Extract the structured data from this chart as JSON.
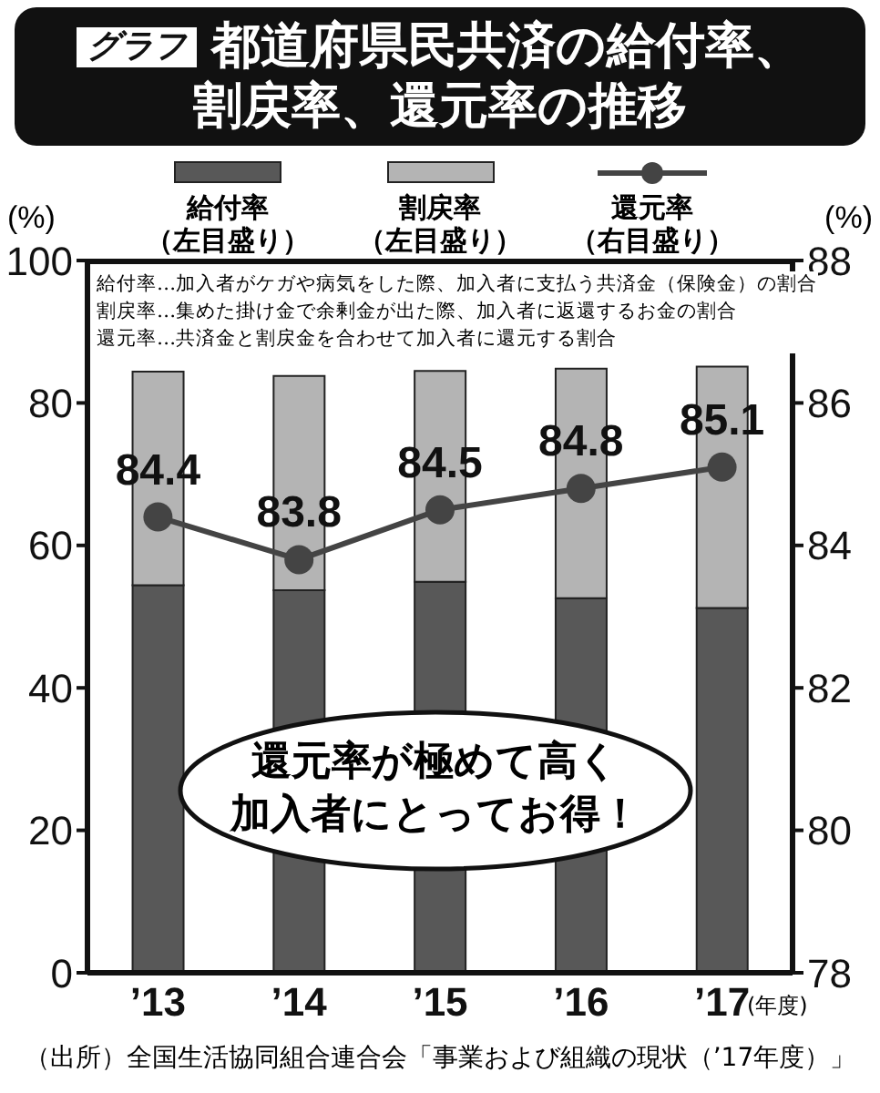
{
  "chart_data": {
    "type": "bar",
    "subtitle": "グラフ",
    "title": "都道府県民共済の給付率、割戻率、還元率の推移",
    "ylabel": "(%)",
    "y2label": "(%)",
    "xlabel": "(年度)",
    "categories": [
      "’13",
      "’14",
      "’15",
      "’16",
      "’17"
    ],
    "stacked": true,
    "legend": "top",
    "ylim": [
      0,
      100
    ],
    "yticks": [
      0,
      20,
      40,
      60,
      80,
      100
    ],
    "y2lim": [
      78,
      88
    ],
    "y2ticks": [
      78,
      80,
      82,
      84,
      86,
      88
    ],
    "series": [
      {
        "name": "給付率（左目盛り）",
        "color": "#585858",
        "values": [
          54.4,
          53.7,
          54.9,
          52.6,
          51.2
        ]
      },
      {
        "name": "割戻率（左目盛り）",
        "color": "#b4b4b4",
        "values": [
          30.0,
          30.1,
          29.6,
          32.2,
          33.9
        ]
      },
      {
        "name": "還元率（右目盛り）",
        "type": "line",
        "axis": "y2",
        "color": "#444444",
        "marker": "circle",
        "data_labels": true,
        "values": [
          84.4,
          83.8,
          84.5,
          84.8,
          85.1
        ]
      }
    ],
    "annotations": [
      "給付率…加入者がケガや病気をした際、加入者に支払う共済金（保険金）の割合",
      "割戻率…集めた掛け金で余剰金が出た際、加入者に返還するお金の割合",
      "還元率…共済金と割戻金を合わせて加入者に還元する割合",
      "還元率が極めて高く",
      "加入者にとってお得！",
      "（出所）全国生活協同組合連合会「事業および組織の現状（’17年度）」"
    ]
  }
}
